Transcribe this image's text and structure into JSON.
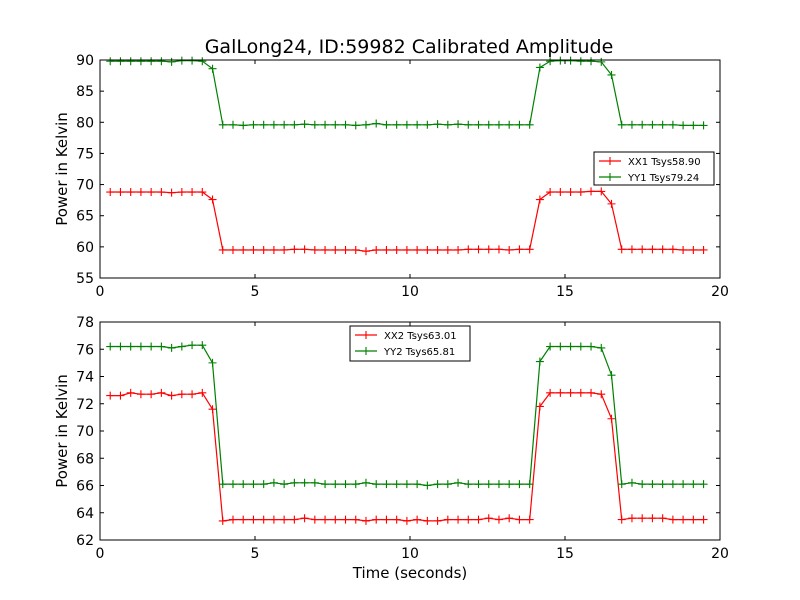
{
  "figure": {
    "title": "GalLong24, ID:59982 Calibrated Amplitude",
    "background": "#ffffff"
  },
  "chart_data": [
    {
      "type": "line",
      "title": "GalLong24, ID:59982 Calibrated Amplitude",
      "xlabel": "",
      "ylabel": "Power in Kelvin",
      "xlim": [
        0,
        20
      ],
      "ylim": [
        55,
        90
      ],
      "xticks": [
        0,
        5,
        10,
        15,
        20
      ],
      "yticks": [
        55,
        60,
        65,
        70,
        75,
        80,
        85,
        90
      ],
      "grid": false,
      "legend_position": "right",
      "x": [
        0.33,
        0.66,
        0.99,
        1.32,
        1.65,
        1.98,
        2.31,
        2.64,
        2.97,
        3.3,
        3.63,
        3.96,
        4.29,
        4.62,
        4.95,
        5.28,
        5.61,
        5.94,
        6.27,
        6.6,
        6.93,
        7.26,
        7.59,
        7.92,
        8.25,
        8.58,
        8.91,
        9.24,
        9.57,
        9.9,
        10.23,
        10.56,
        10.89,
        11.22,
        11.55,
        11.88,
        12.21,
        12.54,
        12.87,
        13.2,
        13.53,
        13.86,
        14.19,
        14.52,
        14.85,
        15.18,
        15.51,
        15.84,
        16.17,
        16.5,
        16.83,
        17.16,
        17.49,
        17.82,
        18.15,
        18.48,
        18.81,
        19.14,
        19.47
      ],
      "series": [
        {
          "name": "XX1 Tsys58.90",
          "color": "#ff0000",
          "values": [
            68.8,
            68.8,
            68.8,
            68.8,
            68.8,
            68.8,
            68.7,
            68.8,
            68.8,
            68.8,
            67.6,
            59.5,
            59.5,
            59.5,
            59.5,
            59.5,
            59.5,
            59.5,
            59.6,
            59.6,
            59.5,
            59.5,
            59.5,
            59.5,
            59.5,
            59.3,
            59.5,
            59.5,
            59.5,
            59.5,
            59.5,
            59.5,
            59.5,
            59.5,
            59.5,
            59.6,
            59.6,
            59.6,
            59.6,
            59.5,
            59.6,
            59.6,
            67.6,
            68.8,
            68.8,
            68.8,
            68.8,
            68.9,
            68.9,
            66.9,
            59.6,
            59.6,
            59.6,
            59.6,
            59.6,
            59.6,
            59.5,
            59.5,
            59.5
          ]
        },
        {
          "name": "YY1 Tsys79.24",
          "color": "#008000",
          "values": [
            89.8,
            89.8,
            89.8,
            89.8,
            89.8,
            89.8,
            89.7,
            89.9,
            89.9,
            89.8,
            88.6,
            79.6,
            79.6,
            79.5,
            79.6,
            79.6,
            79.6,
            79.6,
            79.6,
            79.7,
            79.6,
            79.6,
            79.6,
            79.6,
            79.5,
            79.6,
            79.8,
            79.6,
            79.6,
            79.6,
            79.6,
            79.6,
            79.7,
            79.6,
            79.7,
            79.6,
            79.6,
            79.6,
            79.6,
            79.6,
            79.6,
            79.6,
            88.8,
            89.8,
            89.9,
            89.9,
            89.8,
            89.8,
            89.7,
            87.6,
            79.6,
            79.6,
            79.6,
            79.6,
            79.6,
            79.6,
            79.5,
            79.5,
            79.5
          ]
        }
      ]
    },
    {
      "type": "line",
      "title": "",
      "xlabel": "Time (seconds)",
      "ylabel": "Power in Kelvin",
      "xlim": [
        0,
        20
      ],
      "ylim": [
        62,
        78
      ],
      "xticks": [
        0,
        5,
        10,
        15,
        20
      ],
      "yticks": [
        62,
        64,
        66,
        68,
        70,
        72,
        74,
        76,
        78
      ],
      "grid": false,
      "legend_position": "top-center",
      "x": [
        0.33,
        0.66,
        0.99,
        1.32,
        1.65,
        1.98,
        2.31,
        2.64,
        2.97,
        3.3,
        3.63,
        3.96,
        4.29,
        4.62,
        4.95,
        5.28,
        5.61,
        5.94,
        6.27,
        6.6,
        6.93,
        7.26,
        7.59,
        7.92,
        8.25,
        8.58,
        8.91,
        9.24,
        9.57,
        9.9,
        10.23,
        10.56,
        10.89,
        11.22,
        11.55,
        11.88,
        12.21,
        12.54,
        12.87,
        13.2,
        13.53,
        13.86,
        14.19,
        14.52,
        14.85,
        15.18,
        15.51,
        15.84,
        16.17,
        16.5,
        16.83,
        17.16,
        17.49,
        17.82,
        18.15,
        18.48,
        18.81,
        19.14,
        19.47
      ],
      "series": [
        {
          "name": "XX2 Tsys63.01",
          "color": "#ff0000",
          "values": [
            72.6,
            72.6,
            72.8,
            72.7,
            72.7,
            72.8,
            72.6,
            72.7,
            72.7,
            72.8,
            71.6,
            63.4,
            63.5,
            63.5,
            63.5,
            63.5,
            63.5,
            63.5,
            63.5,
            63.6,
            63.5,
            63.5,
            63.5,
            63.5,
            63.5,
            63.4,
            63.5,
            63.5,
            63.5,
            63.4,
            63.5,
            63.4,
            63.4,
            63.5,
            63.5,
            63.5,
            63.5,
            63.6,
            63.5,
            63.6,
            63.5,
            63.5,
            71.8,
            72.8,
            72.8,
            72.8,
            72.8,
            72.8,
            72.7,
            70.9,
            63.5,
            63.6,
            63.6,
            63.6,
            63.6,
            63.5,
            63.5,
            63.5,
            63.5
          ]
        },
        {
          "name": "YY2 Tsys65.81",
          "color": "#008000",
          "values": [
            76.2,
            76.2,
            76.2,
            76.2,
            76.2,
            76.2,
            76.1,
            76.2,
            76.3,
            76.3,
            75.0,
            66.1,
            66.1,
            66.1,
            66.1,
            66.1,
            66.2,
            66.1,
            66.2,
            66.2,
            66.2,
            66.1,
            66.1,
            66.1,
            66.1,
            66.2,
            66.1,
            66.1,
            66.1,
            66.1,
            66.1,
            66.0,
            66.1,
            66.1,
            66.2,
            66.1,
            66.1,
            66.1,
            66.1,
            66.1,
            66.1,
            66.1,
            75.1,
            76.2,
            76.2,
            76.2,
            76.2,
            76.2,
            76.1,
            74.1,
            66.1,
            66.2,
            66.1,
            66.1,
            66.1,
            66.1,
            66.1,
            66.1,
            66.1
          ]
        }
      ]
    }
  ]
}
